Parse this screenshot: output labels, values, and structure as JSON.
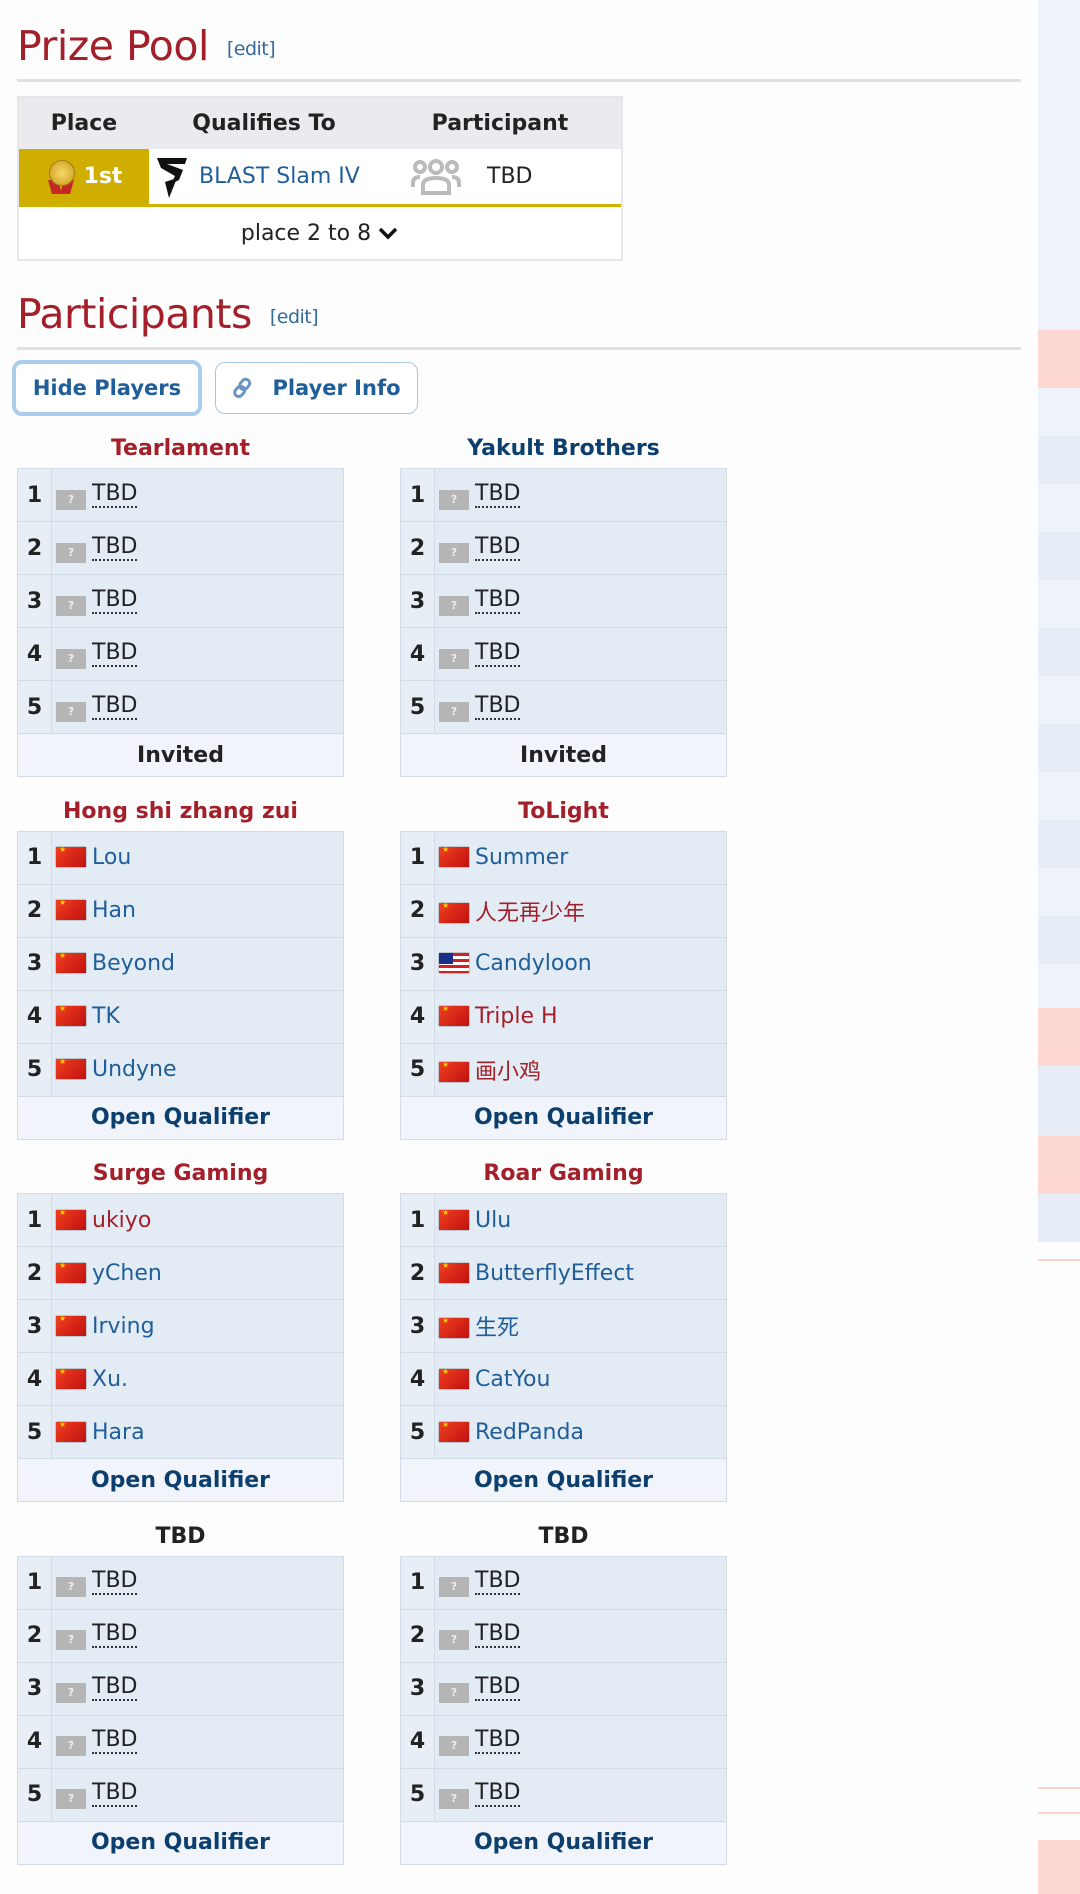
{
  "prize_pool": {
    "title": "Prize Pool",
    "edit_label": "[edit]",
    "headers": [
      "Place",
      "Qualifies To",
      "Participant"
    ],
    "rows": [
      {
        "place": "1st",
        "qualifies_to": "BLAST Slam IV",
        "participant": "TBD",
        "place_color": "#cfae00"
      }
    ],
    "expand_label": "place 2 to 8"
  },
  "participants": {
    "title": "Participants",
    "edit_label": "[edit]",
    "hide_players_label": "Hide Players",
    "player_info_label": "Player Info",
    "teams": [
      {
        "name": "Tearlament",
        "name_color": "red",
        "footer": "Invited",
        "footer_color": "dark",
        "players": [
          {
            "n": "1",
            "name": "TBD",
            "flag": "unk",
            "style": "tbd"
          },
          {
            "n": "2",
            "name": "TBD",
            "flag": "unk",
            "style": "tbd"
          },
          {
            "n": "3",
            "name": "TBD",
            "flag": "unk",
            "style": "tbd"
          },
          {
            "n": "4",
            "name": "TBD",
            "flag": "unk",
            "style": "tbd"
          },
          {
            "n": "5",
            "name": "TBD",
            "flag": "unk",
            "style": "tbd"
          }
        ]
      },
      {
        "name": "Yakult Brothers",
        "name_color": "navy",
        "footer": "Invited",
        "footer_color": "dark",
        "players": [
          {
            "n": "1",
            "name": "TBD",
            "flag": "unk",
            "style": "tbd"
          },
          {
            "n": "2",
            "name": "TBD",
            "flag": "unk",
            "style": "tbd"
          },
          {
            "n": "3",
            "name": "TBD",
            "flag": "unk",
            "style": "tbd"
          },
          {
            "n": "4",
            "name": "TBD",
            "flag": "unk",
            "style": "tbd"
          },
          {
            "n": "5",
            "name": "TBD",
            "flag": "unk",
            "style": "tbd"
          }
        ]
      },
      {
        "name": "Hong shi zhang zui",
        "name_color": "red",
        "footer": "Open Qualifier",
        "footer_color": "navy",
        "players": [
          {
            "n": "1",
            "name": "Lou",
            "flag": "cn",
            "style": "blue"
          },
          {
            "n": "2",
            "name": "Han",
            "flag": "cn",
            "style": "blue"
          },
          {
            "n": "3",
            "name": "Beyond",
            "flag": "cn",
            "style": "blue"
          },
          {
            "n": "4",
            "name": "TK",
            "flag": "cn",
            "style": "blue"
          },
          {
            "n": "5",
            "name": "Undyne",
            "flag": "cn",
            "style": "blue"
          }
        ]
      },
      {
        "name": "ToLight",
        "name_color": "red",
        "footer": "Open Qualifier",
        "footer_color": "navy",
        "players": [
          {
            "n": "1",
            "name": "Summer",
            "flag": "cn",
            "style": "blue"
          },
          {
            "n": "2",
            "name": "人无再少年",
            "flag": "cn",
            "style": "red"
          },
          {
            "n": "3",
            "name": "Candyloon",
            "flag": "my",
            "style": "blue"
          },
          {
            "n": "4",
            "name": "Triple H",
            "flag": "cn",
            "style": "red"
          },
          {
            "n": "5",
            "name": "画小鸡",
            "flag": "cn",
            "style": "red"
          }
        ]
      },
      {
        "name": "Surge Gaming",
        "name_color": "red",
        "footer": "Open Qualifier",
        "footer_color": "navy",
        "players": [
          {
            "n": "1",
            "name": "ukiyo",
            "flag": "cn",
            "style": "red"
          },
          {
            "n": "2",
            "name": "yChen",
            "flag": "cn",
            "style": "blue"
          },
          {
            "n": "3",
            "name": "Irving",
            "flag": "cn",
            "style": "blue"
          },
          {
            "n": "4",
            "name": "Xu.",
            "flag": "cn",
            "style": "blue"
          },
          {
            "n": "5",
            "name": "Hara",
            "flag": "cn",
            "style": "blue"
          }
        ]
      },
      {
        "name": "Roar Gaming",
        "name_color": "red",
        "footer": "Open Qualifier",
        "footer_color": "navy",
        "players": [
          {
            "n": "1",
            "name": "Ulu",
            "flag": "cn",
            "style": "blue"
          },
          {
            "n": "2",
            "name": "ButterflyEffect",
            "flag": "cn",
            "style": "blue"
          },
          {
            "n": "3",
            "name": "生死",
            "flag": "cn",
            "style": "blue"
          },
          {
            "n": "4",
            "name": "CatYou",
            "flag": "cn",
            "style": "blue"
          },
          {
            "n": "5",
            "name": "RedPanda",
            "flag": "cn",
            "style": "blue"
          }
        ]
      },
      {
        "name": "TBD",
        "name_color": "dark",
        "footer": "Open Qualifier",
        "footer_color": "navy",
        "players": [
          {
            "n": "1",
            "name": "TBD",
            "flag": "unk",
            "style": "tbd"
          },
          {
            "n": "2",
            "name": "TBD",
            "flag": "unk",
            "style": "tbd"
          },
          {
            "n": "3",
            "name": "TBD",
            "flag": "unk",
            "style": "tbd"
          },
          {
            "n": "4",
            "name": "TBD",
            "flag": "unk",
            "style": "tbd"
          },
          {
            "n": "5",
            "name": "TBD",
            "flag": "unk",
            "style": "tbd"
          }
        ]
      },
      {
        "name": "TBD",
        "name_color": "dark",
        "footer": "Open Qualifier",
        "footer_color": "navy",
        "players": [
          {
            "n": "1",
            "name": "TBD",
            "flag": "unk",
            "style": "tbd"
          },
          {
            "n": "2",
            "name": "TBD",
            "flag": "unk",
            "style": "tbd"
          },
          {
            "n": "3",
            "name": "TBD",
            "flag": "unk",
            "style": "tbd"
          },
          {
            "n": "4",
            "name": "TBD",
            "flag": "unk",
            "style": "tbd"
          },
          {
            "n": "5",
            "name": "TBD",
            "flag": "unk",
            "style": "tbd"
          }
        ]
      }
    ]
  },
  "colors": {
    "heading": "#a3202b",
    "link": "#1f5e99",
    "gold": "#cfae00"
  }
}
